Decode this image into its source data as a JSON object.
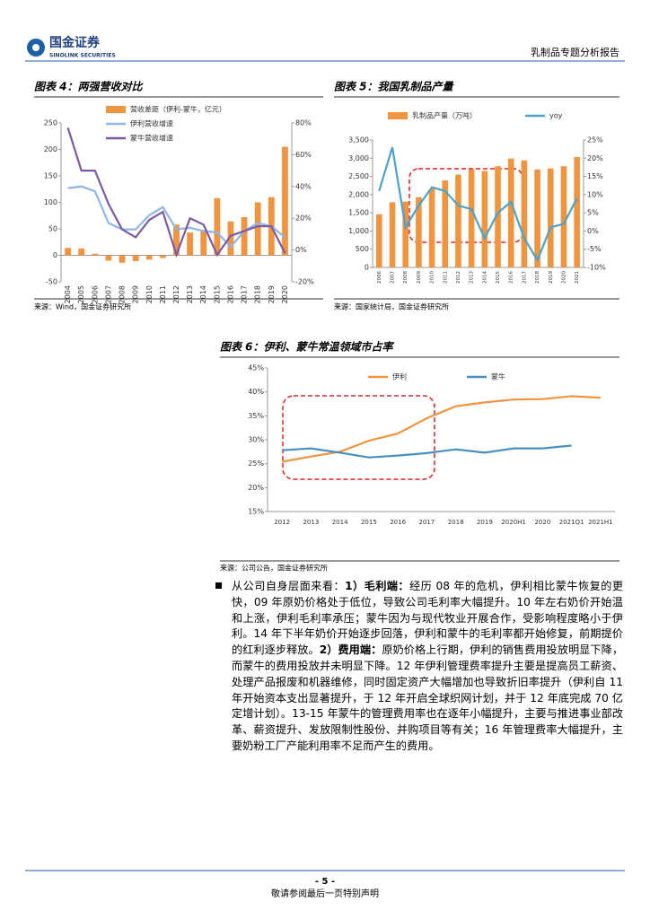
{
  "header": {
    "logo_cn": "国金证券",
    "logo_en": "SINOLINK SECURITIES",
    "report": "乳制品专题分析报告"
  },
  "chart_data": [
    {
      "type": "bar",
      "title": "图表 4：两强营收对比",
      "categories": [
        "2004",
        "2005",
        "2006",
        "2007",
        "2008",
        "2009",
        "2010",
        "2011",
        "2012",
        "2013",
        "2014",
        "2015",
        "2016",
        "2017",
        "2018",
        "2019",
        "2020"
      ],
      "series": [
        {
          "name": "营收差距（伊利-蒙牛，亿元）",
          "type": "bar",
          "color": "#f0943f",
          "values": [
            14,
            13,
            3,
            -10,
            -14,
            -11,
            -8,
            -5,
            58,
            43,
            45,
            108,
            64,
            72,
            100,
            110,
            205
          ]
        },
        {
          "name": "伊利营收增速",
          "type": "line",
          "axis": "y2",
          "color": "#8fb6e6",
          "values": [
            39,
            40,
            37,
            17,
            13,
            13,
            22,
            27,
            13,
            14,
            12,
            11,
            2,
            12,
            17,
            15,
            8
          ]
        },
        {
          "name": "蒙牛营收增速",
          "type": "line",
          "axis": "y2",
          "color": "#7b5aa6",
          "values": [
            77,
            50,
            50,
            29,
            13,
            8,
            19,
            24,
            -3,
            20,
            16,
            -3,
            9,
            12,
            15,
            15,
            -2
          ]
        }
      ],
      "ylim": [
        -50,
        250
      ],
      "yticks": [
        -50,
        0,
        50,
        100,
        150,
        200,
        250
      ],
      "y2lim": [
        -20,
        80
      ],
      "y2ticks": [
        {
          "value": -20,
          "label": "-20%"
        },
        {
          "value": 0,
          "label": "0%"
        },
        {
          "value": 20,
          "label": "20%"
        },
        {
          "value": 40,
          "label": "40%"
        },
        {
          "value": 60,
          "label": "60%"
        },
        {
          "value": 80,
          "label": "80%"
        }
      ]
    },
    {
      "type": "bar",
      "title": "图表 5：我国乳制品产量",
      "categories": [
        "2006",
        "2007",
        "2008",
        "2009",
        "2010",
        "2011",
        "2012",
        "2013",
        "2014",
        "2015",
        "2016",
        "2017",
        "2018",
        "2019",
        "2020",
        "2021"
      ],
      "series": [
        {
          "name": "乳制品产量（万吨）",
          "type": "bar",
          "color": "#f0943f",
          "values": [
            1460,
            1790,
            1810,
            1930,
            2160,
            2390,
            2550,
            2700,
            2650,
            2780,
            2990,
            2940,
            2690,
            2720,
            2780,
            3030
          ]
        },
        {
          "name": "yoy",
          "type": "line",
          "axis": "y2",
          "color": "#4aa3c8",
          "values": [
            11,
            23,
            1,
            7,
            12,
            11,
            7,
            6,
            -2,
            5,
            8,
            -2,
            -8,
            1,
            2,
            9
          ]
        }
      ],
      "ylim": [
        0,
        3500
      ],
      "yticks": [
        0,
        500,
        {
          "value": 1000,
          "label": "1,000"
        },
        {
          "value": 1500,
          "label": "1,500"
        },
        {
          "value": 2000,
          "label": "2,000"
        },
        {
          "value": 2500,
          "label": "2,500"
        },
        {
          "value": 3000,
          "label": "3,000"
        },
        {
          "value": 3500,
          "label": "3,500"
        }
      ],
      "y2lim": [
        -10,
        25
      ],
      "y2ticks": [
        {
          "value": -10,
          "label": "-10%"
        },
        {
          "value": -5,
          "label": "-5%"
        },
        {
          "value": 0,
          "label": "0%"
        },
        {
          "value": 5,
          "label": "5%"
        },
        {
          "value": 10,
          "label": "10%"
        },
        {
          "value": 15,
          "label": "15%"
        },
        {
          "value": 20,
          "label": "20%"
        },
        {
          "value": 25,
          "label": "25%"
        }
      ]
    },
    {
      "type": "line",
      "title": "图表 6：伊利、蒙牛常温领域市占率",
      "categories": [
        "2012",
        "2013",
        "2014",
        "2015",
        "2016",
        "2017",
        "2018",
        "2019",
        "2020H1",
        "2020",
        "2021Q1",
        "2021H1"
      ],
      "series": [
        {
          "name": "伊利",
          "type": "line",
          "color": "#f0943f",
          "values": [
            25.4,
            26.5,
            27.5,
            29.8,
            31.3,
            34.5,
            37,
            37.8,
            38.4,
            38.5,
            39.1,
            38.8
          ]
        },
        {
          "name": "蒙牛",
          "type": "line",
          "color": "#4a8fc0",
          "values": [
            27.8,
            28.2,
            27.3,
            26.3,
            26.7,
            27.2,
            28,
            27.3,
            28.2,
            28.2,
            28.8,
            null
          ]
        }
      ],
      "ylim": [
        15,
        45
      ],
      "yticks": [
        {
          "value": 15,
          "label": "15%"
        },
        {
          "value": 20,
          "label": "20%"
        },
        {
          "value": 25,
          "label": "25%"
        },
        {
          "value": 30,
          "label": "30%"
        },
        {
          "value": 35,
          "label": "35%"
        },
        {
          "value": 40,
          "label": "40%"
        },
        {
          "value": 45,
          "label": "45%"
        }
      ]
    }
  ],
  "sources": [
    "来源：Wind，国金证券研究所",
    "来源：国家统计局，国金证券研究所",
    "来源：公司公告，国金证券研究所"
  ],
  "body": {
    "runs": [
      "从公司自身层面来看：",
      "1）毛利端：",
      "经历 08 年的危机，伊利相比蒙牛恢复的更快，09 年原奶价格处于低位，导致公司毛利率大幅提升。10 年左右奶价开始温和上涨，伊利毛利率承压；蒙牛因为与现代牧业开展合作，受影响程度略小于伊利。14 年下半年奶价开始逐步回落，伊利和蒙牛的毛利率都开始修复，前期提价的红利逐步释放。",
      "2）费用端：",
      "原奶价格上行期，伊利的销售费用投放明显下降，而蒙牛的费用投放并未明显下降。12 年伊利管理费率提升主要是提高员工薪资、处理产品报废和机器维修，同时固定资产大幅增加也导致折旧率提升（伊利自 11 年开始资本支出显著提升，于 12 年开启全球织网计划，并于 12 年底完成 70 亿定增计划）。13-15 年蒙牛的管理费用率也在逐年小幅提升，主要与推进事业部改革、薪资提升、发放限制性股份、并购项目等有关；16 年管理费率大幅提升，主要奶粉工厂产能利用率不足而产生的费用。"
    ]
  },
  "footer": {
    "page": "- 5 -",
    "note": "敬请参阅最后一页特别声明"
  }
}
